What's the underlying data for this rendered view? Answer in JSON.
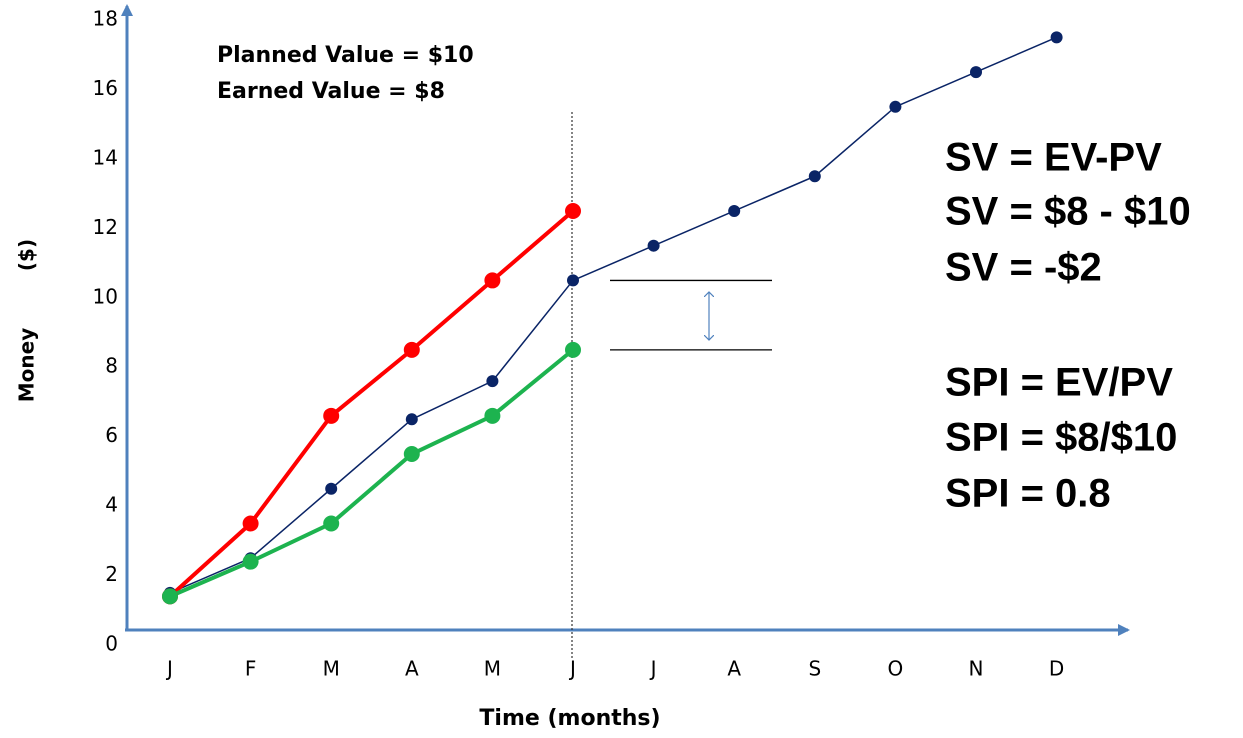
{
  "chart_data": {
    "type": "line",
    "categories": [
      "J",
      "F",
      "M",
      "A",
      "M",
      "J",
      "J",
      "A",
      "S",
      "O",
      "N",
      "D"
    ],
    "series": [
      {
        "color": "#0a2466",
        "values": [
          1.5,
          2.5,
          4.5,
          6.5,
          7.6,
          10.5,
          11.5,
          12.5,
          13.5,
          15.5,
          16.5,
          17.5
        ]
      },
      {
        "color": "#ff0000",
        "values": [
          1.4,
          3.5,
          6.6,
          8.5,
          10.5,
          12.5,
          null,
          null,
          null,
          null,
          null,
          null
        ]
      },
      {
        "color": "#1db34f",
        "values": [
          1.4,
          2.4,
          3.5,
          5.5,
          6.6,
          8.5,
          null,
          null,
          null,
          null,
          null,
          null
        ]
      }
    ],
    "ylim": [
      0,
      18
    ],
    "yticks": [
      0,
      2,
      4,
      6,
      8,
      10,
      12,
      14,
      16,
      18
    ],
    "xlabel": "Time (months)",
    "ylabel": [
      "Money",
      "($)"
    ],
    "annotations": [
      "Planned Value = $10",
      "Earned Value = $8"
    ],
    "formulas": [
      "SV = EV-PV",
      "SV = $8 - $10",
      "SV = -$2",
      "SPI = EV/PV",
      "SPI = $8/$10",
      "SPI = 0.8"
    ]
  }
}
